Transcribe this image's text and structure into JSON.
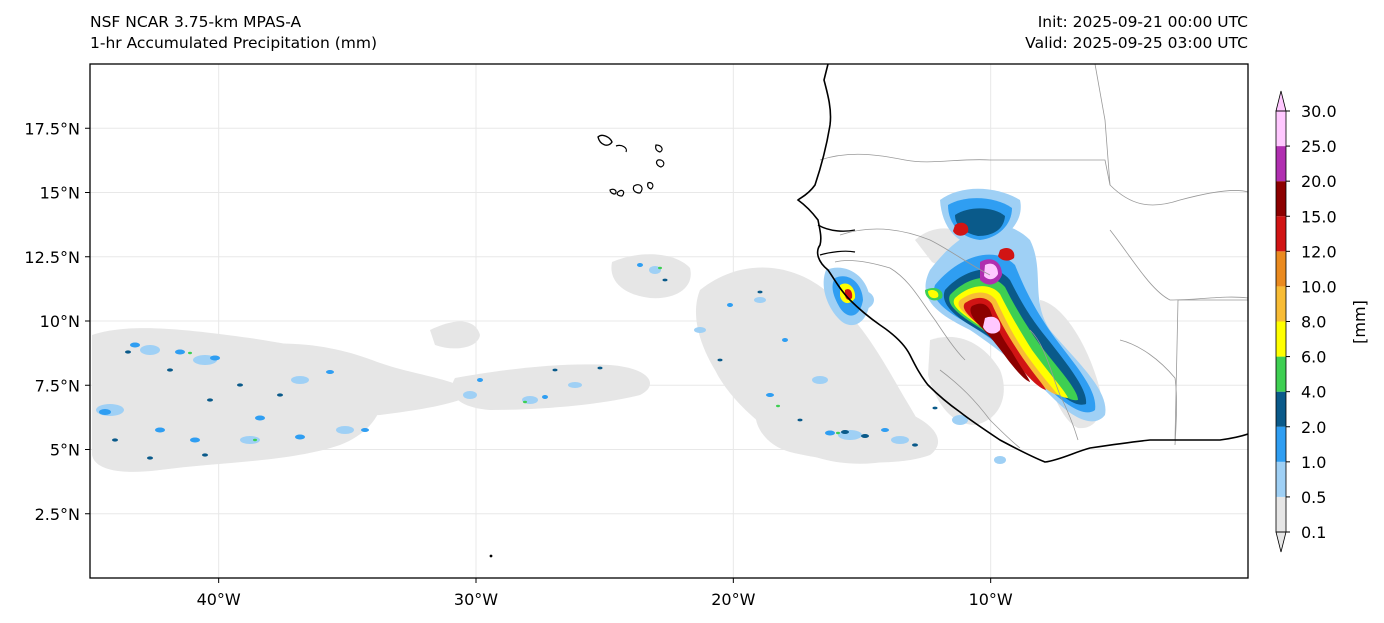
{
  "header": {
    "model": "NSF NCAR 3.75-km MPAS-A",
    "field": "1-hr Accumulated Precipitation (mm)",
    "init": "Init: 2025-09-21 00:00 UTC",
    "valid": "Valid: 2025-09-25 03:00 UTC"
  },
  "map": {
    "lon_range": [
      -45,
      0
    ],
    "lat_range": [
      0,
      20
    ],
    "lon_ticks": [
      {
        "value": -40,
        "label": "40°W"
      },
      {
        "value": -30,
        "label": "30°W"
      },
      {
        "value": -20,
        "label": "20°W"
      },
      {
        "value": -10,
        "label": "10°W"
      }
    ],
    "lat_ticks": [
      {
        "value": 2.5,
        "label": "2.5°N"
      },
      {
        "value": 5,
        "label": "5°N"
      },
      {
        "value": 7.5,
        "label": "7.5°N"
      },
      {
        "value": 10,
        "label": "10°N"
      },
      {
        "value": 12.5,
        "label": "12.5°N"
      },
      {
        "value": 15,
        "label": "15°N"
      },
      {
        "value": 17.5,
        "label": "17.5°N"
      }
    ]
  },
  "colorbar": {
    "unit_label": "[mm]",
    "levels": [
      "0.1",
      "0.5",
      "1.0",
      "2.0",
      "4.0",
      "6.0",
      "8.0",
      "10.0",
      "12.0",
      "15.0",
      "20.0",
      "25.0",
      "30.0"
    ],
    "colors": [
      "#e6e6e6",
      "#9fd0f5",
      "#2f9ef2",
      "#0a5a8a",
      "#3ecf52",
      "#ffff00",
      "#f8bc35",
      "#ea8a1f",
      "#d11414",
      "#8c0000",
      "#b02fb0",
      "#ffc8ff"
    ],
    "extend": "both"
  },
  "colors": {
    "land_border": "#999999",
    "coast": "#000000",
    "grid": "#e8e8e8"
  }
}
